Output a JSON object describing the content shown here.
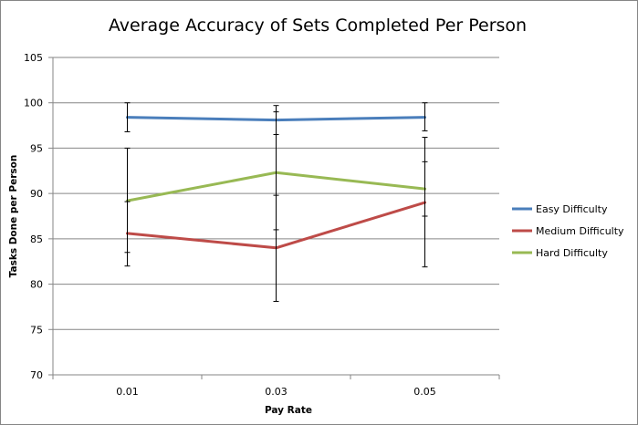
{
  "chart_data": {
    "type": "line",
    "title": "Average Accuracy of Sets Completed Per Person",
    "xlabel": "Pay Rate",
    "ylabel": "Tasks Done per Person",
    "categories": [
      "0.01",
      "0.03",
      "0.05"
    ],
    "ylim": [
      70,
      105
    ],
    "yticks": [
      70,
      75,
      80,
      85,
      90,
      95,
      100,
      105
    ],
    "grid": true,
    "legend": "right",
    "series": [
      {
        "name": "Easy Difficulty",
        "color": "#4A7EBB",
        "values": [
          98.4,
          98.1,
          98.4
        ],
        "errors": [
          [
            96.8,
            100.0
          ],
          [
            96.5,
            99.7
          ],
          [
            96.9,
            100.0
          ]
        ]
      },
      {
        "name": "Medium Difficulty",
        "color": "#BE4B48",
        "values": [
          85.6,
          84.0,
          89.0
        ],
        "errors": [
          [
            82.0,
            89.1
          ],
          [
            78.1,
            89.8
          ],
          [
            81.9,
            96.2
          ]
        ]
      },
      {
        "name": "Hard Difficulty",
        "color": "#98B954",
        "values": [
          89.2,
          92.3,
          90.5
        ],
        "errors": [
          [
            83.5,
            95.0
          ],
          [
            86.0,
            99.0
          ],
          [
            87.5,
            93.5
          ]
        ]
      }
    ]
  }
}
